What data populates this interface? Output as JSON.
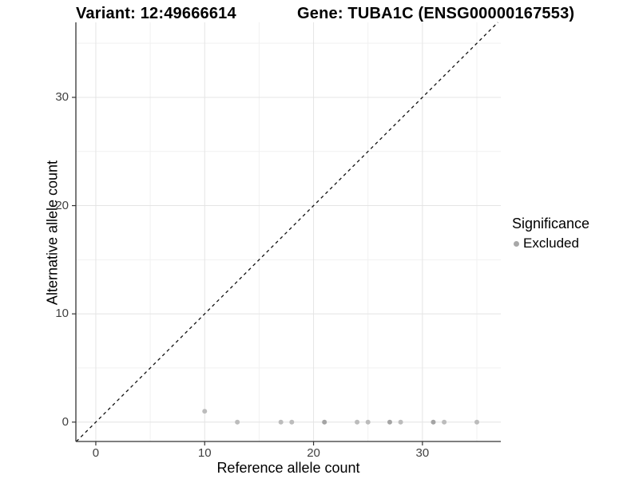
{
  "header": {
    "variant_title": "Variant: 12:49666614",
    "gene_title": "Gene: TUBA1C (ENSG00000167553)"
  },
  "chart_data": {
    "type": "scatter",
    "title": "Variant: 12:49666614   Gene: TUBA1C (ENSG00000167553)",
    "xlabel": "Reference allele count",
    "ylabel": "Alternative allele count",
    "xlim": [
      -1.83,
      37.2
    ],
    "ylim": [
      -1.79,
      36.93
    ],
    "x_ticks": [
      0,
      10,
      20,
      30
    ],
    "y_ticks": [
      0,
      10,
      20,
      30
    ],
    "x_minor_gridlines": [
      5,
      15,
      25,
      35
    ],
    "y_minor_gridlines": [
      5,
      15,
      25,
      35
    ],
    "grid": true,
    "identity_line": {
      "type": "dashed",
      "equation": "y = x",
      "color": "#111111"
    },
    "series": [
      {
        "name": "Excluded",
        "color": "#bcbcbc",
        "overlap_color": "#a4a4a4",
        "points": [
          {
            "x": 10,
            "y": 1,
            "n": 1
          },
          {
            "x": 13,
            "y": 0,
            "n": 1
          },
          {
            "x": 17,
            "y": 0,
            "n": 1
          },
          {
            "x": 18,
            "y": 0,
            "n": 1
          },
          {
            "x": 21,
            "y": 0,
            "n": 2
          },
          {
            "x": 24,
            "y": 0,
            "n": 1
          },
          {
            "x": 25,
            "y": 0,
            "n": 1
          },
          {
            "x": 27,
            "y": 0,
            "n": 2
          },
          {
            "x": 28,
            "y": 0,
            "n": 1
          },
          {
            "x": 31,
            "y": 0,
            "n": 2
          },
          {
            "x": 32,
            "y": 0,
            "n": 1
          },
          {
            "x": 35,
            "y": 0,
            "n": 1
          }
        ]
      }
    ],
    "legend": {
      "position": "right",
      "title": "Significance",
      "items": [
        {
          "label": "Excluded",
          "color": "#a8a8a8"
        }
      ]
    }
  },
  "colors": {
    "background": "#ffffff",
    "axis_line": "#333333",
    "major_gridline": "#e4e4e4",
    "minor_gridline": "#f1f1f1",
    "tick_label": "#404040",
    "identity_line": "#111111"
  }
}
